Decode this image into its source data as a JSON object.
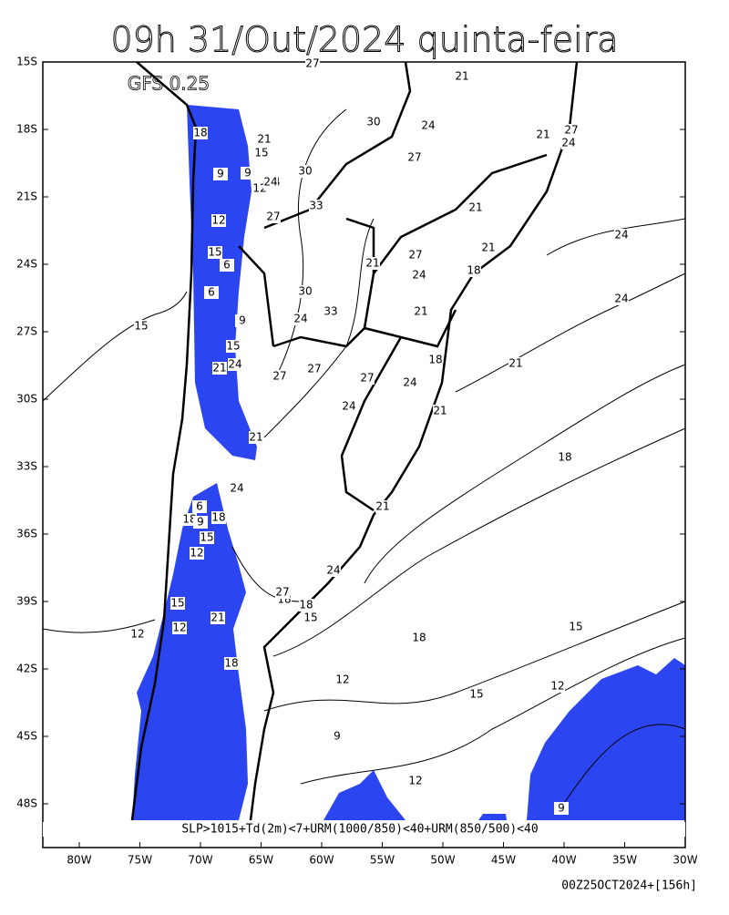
{
  "title": "09h 31/Out/2024 quinta-feira",
  "model": "GFS 0.25",
  "legend": "SLP>1015+Td(2m)<7+URM(1000/850)<40+URM(850/500)<40",
  "footer": "00Z25OCT2024+[156h]",
  "lat_labels": [
    "15S",
    "18S",
    "21S",
    "24S",
    "27S",
    "30S",
    "33S",
    "36S",
    "39S",
    "42S",
    "45S",
    "48S"
  ],
  "lon_labels": [
    "80W",
    "75W",
    "70W",
    "65W",
    "60W",
    "55W",
    "50W",
    "45W",
    "40W",
    "35W",
    "30W"
  ],
  "contour_labels": [
    27,
    21,
    30,
    24,
    27,
    21,
    27,
    24,
    18,
    21,
    15,
    9,
    9,
    12,
    24,
    30,
    27,
    12,
    33,
    21,
    24,
    15,
    24,
    27,
    21,
    18,
    6,
    24,
    21,
    30,
    33,
    24,
    6,
    15,
    9,
    21,
    15,
    21,
    18,
    24,
    27,
    24,
    24,
    24,
    27,
    27,
    18,
    21,
    21,
    21,
    18,
    6,
    18,
    9,
    18,
    15,
    12,
    24,
    24,
    27,
    21,
    18,
    15,
    21,
    12,
    18,
    15,
    15,
    18,
    12,
    12,
    12,
    15,
    9,
    12,
    9
  ]
}
